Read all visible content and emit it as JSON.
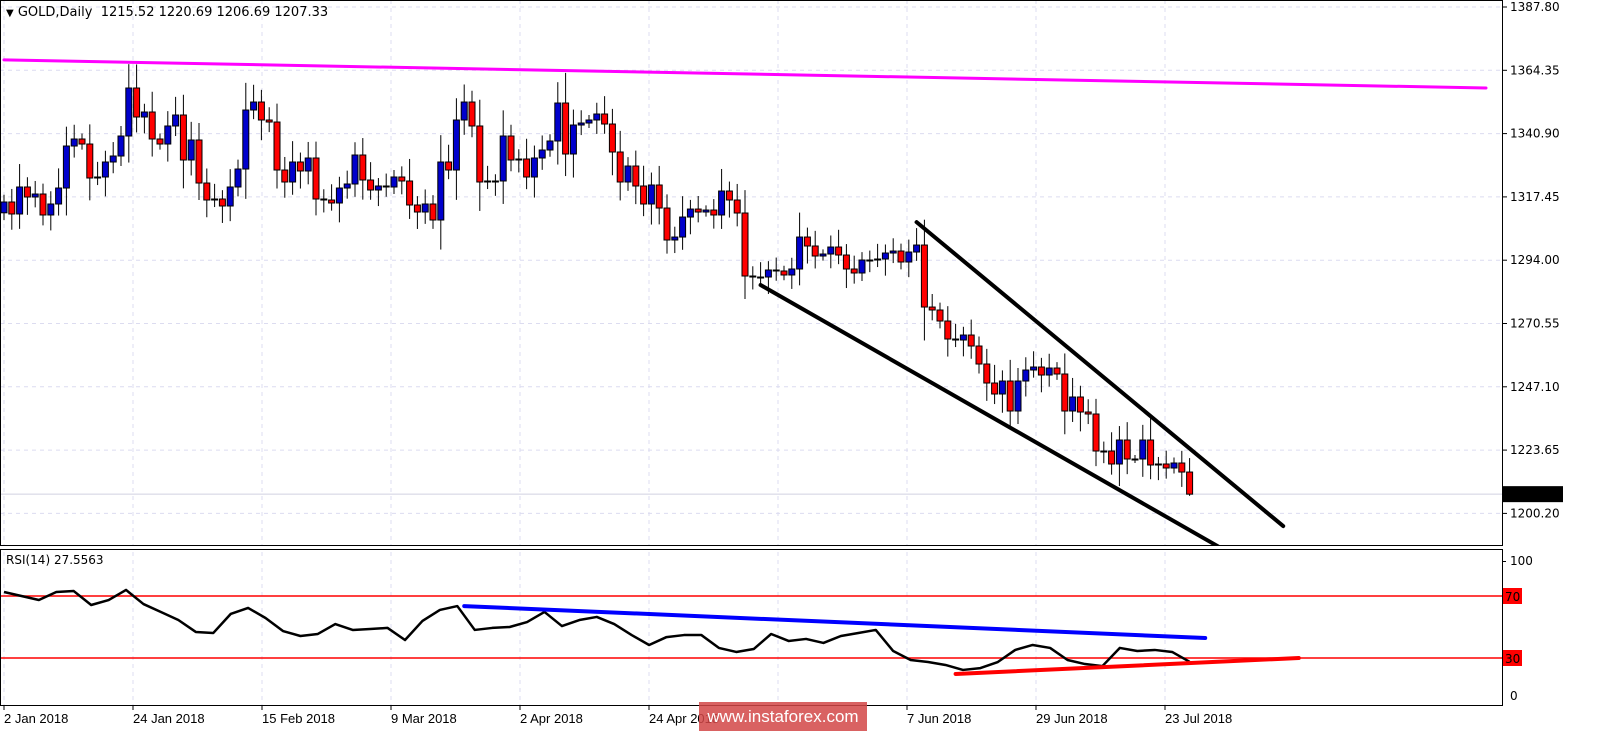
{
  "header": {
    "symbol_period": "GOLD,Daily",
    "ohlc": "1215.52 1220.69 1206.69 1207.33",
    "menu_icon": "triangle-down-icon"
  },
  "rsi_label": "RSI(14) 27.5563",
  "watermark": "www.instaforex.com",
  "colors": {
    "bull": "#0000cc",
    "bear": "#ff0000",
    "resistance": "#ff00ff",
    "channel": "#000000",
    "rsi_line": "#000000",
    "rsi_trend_high": "#0000ff",
    "rsi_trend_low": "#ff0000",
    "levels": "#ff0000",
    "grid": "#dcdcf0"
  },
  "chart_data": [
    {
      "type": "candlestick",
      "title": "GOLD,Daily",
      "ylim": [
        1188.5,
        1390.4
      ],
      "y_ticks": [
        "1387.80",
        "1364.35",
        "1340.90",
        "1317.45",
        "1294.00",
        "1270.55",
        "1247.10",
        "1223.65",
        "1200.20"
      ],
      "current_price": "1207.33",
      "x_ticks": [
        "2 Jan 2018",
        "24 Jan 2018",
        "15 Feb 2018",
        "9 Mar 2018",
        "2 Apr 2018",
        "24 Apr 2018",
        "7 Jun 2018",
        "29 Jun 2018",
        "23 Jul 2018"
      ],
      "grid": true,
      "closes": [
        1315.56,
        1311.12,
        1321.12,
        1317.41,
        1318.52,
        1310.75,
        1314.82,
        1320.74,
        1336.3,
        1338.9,
        1337.04,
        1324.45,
        1324.82,
        1330.38,
        1332.6,
        1340.01,
        1357.79,
        1347.05,
        1348.9,
        1338.9,
        1337.04,
        1343.72,
        1347.79,
        1331.12,
        1338.53,
        1322.59,
        1316.3,
        1316.67,
        1314.08,
        1321.12,
        1327.78,
        1349.64,
        1352.6,
        1345.94,
        1345.19,
        1327.41,
        1322.97,
        1330.38,
        1327.05,
        1331.86,
        1316.67,
        1316.3,
        1315.19,
        1320.74,
        1322.23,
        1332.97,
        1323.71,
        1320.0,
        1321.49,
        1321.12,
        1324.82,
        1323.34,
        1314.45,
        1311.85,
        1314.82,
        1308.89,
        1330.38,
        1327.41,
        1345.94,
        1352.6,
        1343.72,
        1322.97,
        1323.34,
        1323.34,
        1340.01,
        1331.12,
        1331.49,
        1324.82,
        1331.86,
        1334.82,
        1338.16,
        1352.23,
        1333.34,
        1344.08,
        1344.82,
        1345.94,
        1348.16,
        1344.45,
        1334.08,
        1322.97,
        1328.89,
        1321.49,
        1314.82,
        1321.86,
        1313.33,
        1301.48,
        1302.58,
        1309.99,
        1312.95,
        1311.85,
        1312.59,
        1310.75,
        1319.63,
        1316.3,
        1311.48,
        1288.14,
        1287.77,
        1287.77,
        1290.37,
        1290.0,
        1288.52,
        1290.74,
        1302.58,
        1299.26,
        1295.55,
        1296.29,
        1298.88,
        1295.92,
        1290.74,
        1289.26,
        1294.07,
        1294.07,
        1294.44,
        1296.66,
        1297.4,
        1293.33,
        1297.03,
        1299.62,
        1276.65,
        1275.55,
        1271.47,
        1264.8,
        1264.43,
        1266.28,
        1262.21,
        1255.54,
        1248.5,
        1244.43,
        1249.24,
        1238.13,
        1249.24,
        1253.32,
        1254.43,
        1251.46,
        1254.06,
        1251.84,
        1238.13,
        1243.32,
        1237.76,
        1237.02,
        1223.31,
        1223.31,
        1218.5,
        1227.39,
        1220.35,
        1220.35,
        1227.39,
        1218.13,
        1218.5,
        1217.02,
        1218.87,
        1215.52,
        1207.33
      ],
      "last_bar": {
        "open": 1215.52,
        "high": 1220.69,
        "low": 1206.69,
        "close": 1207.33
      },
      "trendlines": [
        {
          "role": "resistance",
          "color": "#ff00ff",
          "from": {
            "bar": 0,
            "price": 1368.2
          },
          "to": {
            "bar": 190,
            "price": 1357.8
          }
        },
        {
          "role": "channel-upper",
          "color": "#000000",
          "from": {
            "bar": 117,
            "price": 1308.1
          },
          "to": {
            "bar": 164,
            "price": 1195.5
          }
        },
        {
          "role": "channel-lower",
          "color": "#000000",
          "from": {
            "bar": 97,
            "price": 1284.8
          },
          "to": {
            "bar": 156,
            "price": 1187.4
          }
        }
      ]
    },
    {
      "type": "line",
      "title": "RSI(14) 27.5563",
      "ylim": [
        0,
        100
      ],
      "y_ticks": [
        "100",
        "70",
        "30",
        "0"
      ],
      "levels": [
        70,
        30
      ],
      "values": [
        72.6,
        70,
        67.4,
        72.6,
        73.2,
        64.2,
        67.4,
        73.9,
        64.8,
        59.7,
        54.5,
        46.8,
        46.1,
        58.4,
        62.3,
        55.8,
        47.4,
        44.2,
        45.5,
        51.9,
        48.1,
        48.7,
        49.4,
        41.6,
        53.9,
        61.0,
        63.5,
        48.1,
        49.4,
        50.0,
        53.2,
        59.7,
        50.6,
        54.5,
        56.5,
        51.9,
        44.8,
        38.4,
        43.5,
        44.8,
        44.8,
        36.5,
        33.9,
        35.8,
        45.5,
        41.0,
        42.3,
        39.7,
        44.2,
        46.1,
        48.1,
        34.5,
        28.7,
        27.4,
        25.5,
        22.3,
        23.5,
        27.4,
        35.2,
        38.4,
        36.5,
        28.7,
        26.1,
        24.8,
        36.5,
        34.5,
        35.2,
        33.9,
        27.56
      ],
      "trendlines": [
        {
          "color": "#0000ff",
          "from": {
            "bar": 59,
            "value": 63.5
          },
          "to": {
            "bar": 154,
            "value": 42.9
          }
        },
        {
          "color": "#ff0000",
          "from": {
            "bar": 122,
            "value": 19.7
          },
          "to": {
            "bar": 166,
            "value": 30
          }
        }
      ]
    }
  ]
}
